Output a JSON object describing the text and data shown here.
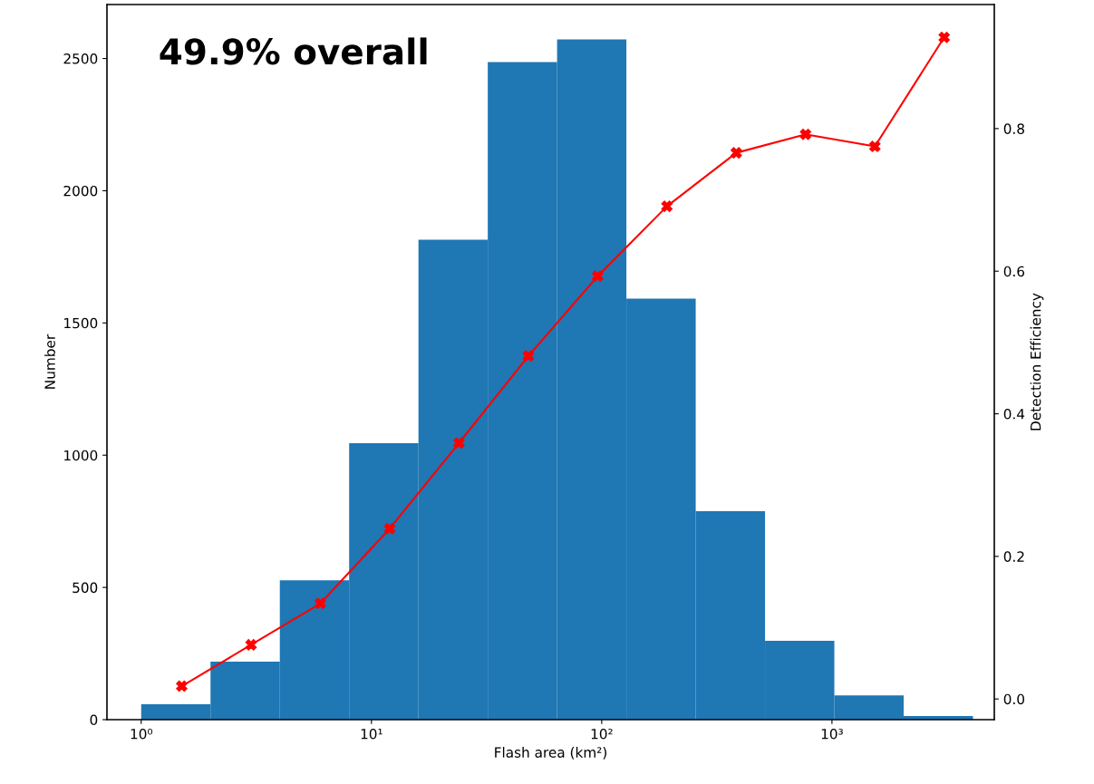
{
  "chart_data": {
    "type": "histogram",
    "xlabel": "Flash area (km²)",
    "ylabel": "Number",
    "y2label": "Detection Efficiency",
    "annotations": [
      "49.9% overall"
    ],
    "log": "x",
    "grid": false,
    "xlim": [
      0.71,
      5070
    ],
    "xticks": [
      {
        "value": 1,
        "label": "10⁰"
      },
      {
        "value": 10,
        "label": "10¹"
      },
      {
        "value": 100,
        "label": "10²"
      },
      {
        "value": 1000,
        "label": "10³"
      }
    ],
    "ylim": [
      0,
      2704
    ],
    "yticks": [
      0,
      500,
      1000,
      1500,
      2000,
      2500
    ],
    "y2lim": [
      -0.029,
      0.974
    ],
    "y2ticks": [
      {
        "value": 0,
        "label": "0.0"
      },
      0.2,
      0.4,
      0.6,
      0.8
    ],
    "series": [
      {
        "color": "#1f77b4",
        "bins": [
          1,
          2,
          4,
          8,
          16,
          32,
          64,
          128,
          256,
          512,
          1024,
          2048,
          4096
        ],
        "values": [
          58,
          219,
          527,
          1045,
          1815,
          2486,
          2572,
          1592,
          788,
          298,
          92,
          14
        ]
      },
      {
        "type": "line",
        "axis": "y2",
        "color": "#ff0000",
        "marker": "cross",
        "line_style": "solid",
        "x": [
          1.5,
          3,
          6,
          12,
          24,
          48,
          96,
          192,
          384,
          768,
          1536,
          3072
        ],
        "values": [
          0.018,
          0.076,
          0.134,
          0.239,
          0.359,
          0.481,
          0.593,
          0.691,
          0.766,
          0.792,
          0.775,
          0.928
        ]
      }
    ]
  }
}
